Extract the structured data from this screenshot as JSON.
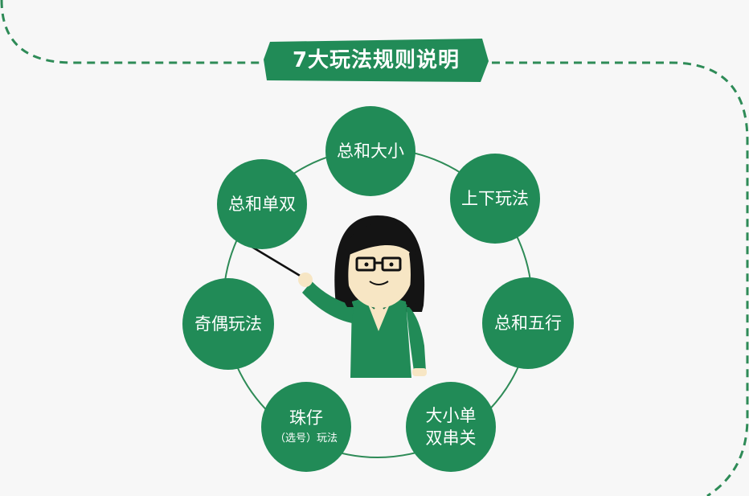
{
  "title": "7大玩法规则说明",
  "colors": {
    "primary": "#218b57",
    "background": "#f7f7f7",
    "dashed_line": "#2e8b57",
    "text_on_primary": "#ffffff"
  },
  "modes": [
    {
      "label": "总和大小"
    },
    {
      "label": "上下玩法"
    },
    {
      "label": "总和五行"
    },
    {
      "line1": "大小单",
      "line2": "双串关"
    },
    {
      "label": "珠仔",
      "sub": "（选号）玩法"
    },
    {
      "label": "奇偶玩法"
    },
    {
      "label": "总和单双"
    }
  ],
  "illustration": "teacher-with-pointer"
}
